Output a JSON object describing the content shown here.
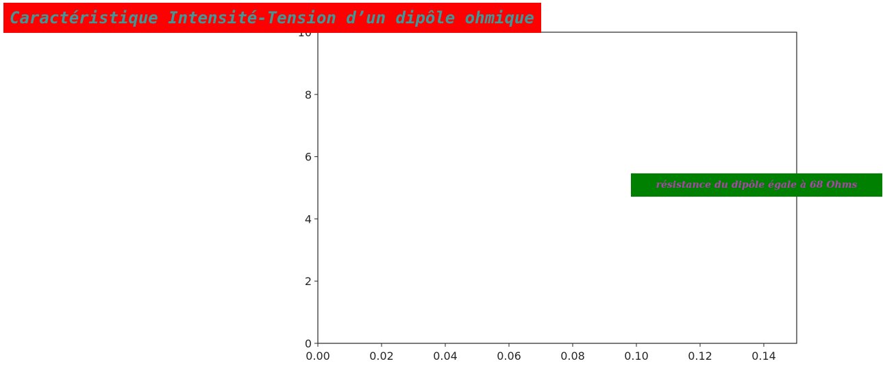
{
  "chart_data": {
    "type": "line",
    "title": "Caractéristique Intensité-Tension d’un dipôle ohmique",
    "xlabel": "",
    "ylabel": "",
    "xlim": [
      0.0,
      0.15
    ],
    "ylim": [
      0,
      10
    ],
    "x_ticks": [
      "0.00",
      "0.02",
      "0.04",
      "0.06",
      "0.08",
      "0.10",
      "0.12",
      "0.14"
    ],
    "y_ticks": [
      "0",
      "2",
      "4",
      "6",
      "8",
      "10"
    ],
    "series": [],
    "grid": false,
    "annotation": {
      "text": "résistance du dipôle égale à 68 Ohms",
      "x": 0.175,
      "y": 5.05
    }
  },
  "colors": {
    "title_background": "#ff0000",
    "title_text": "#3a9a9a",
    "annotation_background": "#008000",
    "annotation_text": "#aa44aa",
    "axes": "#262626"
  }
}
